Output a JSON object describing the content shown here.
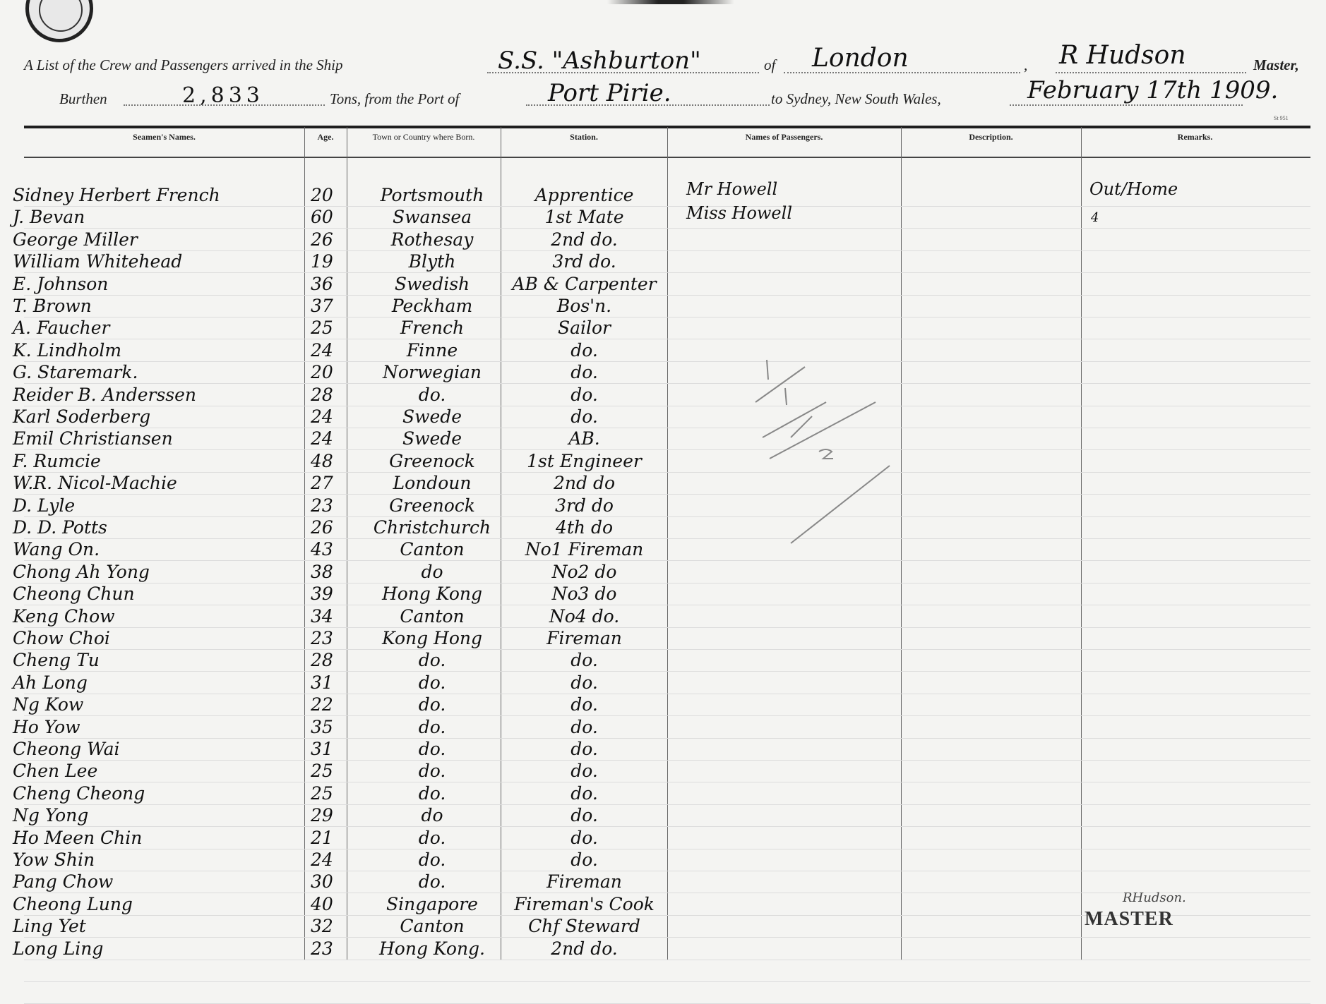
{
  "header": {
    "line1_prefix": "A List of the Crew and Passengers arrived in the Ship",
    "ship": "S.S. \"Ashburton\"",
    "of_label": "of",
    "port_of_registry": "London",
    "comma": ",",
    "master_name": "R Hudson",
    "master_label": "Master,",
    "burthen_label": "Burthen",
    "burthen": "2,833",
    "tons_label": "Tons, from the Port of",
    "from_port": "Port Pirie.",
    "to_label": "to Sydney, New South Wales,",
    "date": "February 17th 1909.",
    "form_number": "St 951"
  },
  "columns": [
    "Seamen's Names.",
    "Age.",
    "Town or Country where Born.",
    "Station.",
    "Names of Passengers.",
    "Description.",
    "Remarks."
  ],
  "crew": [
    {
      "name": "Sidney Herbert French",
      "age": "20",
      "born": "Portsmouth",
      "station": "Apprentice"
    },
    {
      "name": "J. Bevan",
      "age": "60",
      "born": "Swansea",
      "station": "1st Mate"
    },
    {
      "name": "George Miller",
      "age": "26",
      "born": "Rothesay",
      "station": "2nd do."
    },
    {
      "name": "William Whitehead",
      "age": "19",
      "born": "Blyth",
      "station": "3rd do."
    },
    {
      "name": "E. Johnson",
      "age": "36",
      "born": "Swedish",
      "station": "AB & Carpenter"
    },
    {
      "name": "T. Brown",
      "age": "37",
      "born": "Peckham",
      "station": "Bos'n."
    },
    {
      "name": "A. Faucher",
      "age": "25",
      "born": "French",
      "station": "Sailor"
    },
    {
      "name": "K. Lindholm",
      "age": "24",
      "born": "Finne",
      "station": "do."
    },
    {
      "name": "G. Staremark.",
      "age": "20",
      "born": "Norwegian",
      "station": "do."
    },
    {
      "name": "Reider B. Anderssen",
      "age": "28",
      "born": "do.",
      "station": "do."
    },
    {
      "name": "Karl Soderberg",
      "age": "24",
      "born": "Swede",
      "station": "do."
    },
    {
      "name": "Emil Christiansen",
      "age": "24",
      "born": "Swede",
      "station": "AB."
    },
    {
      "name": "F. Rumcie",
      "age": "48",
      "born": "Greenock",
      "station": "1st Engineer"
    },
    {
      "name": "W.R. Nicol-Machie",
      "age": "27",
      "born": "Londoun",
      "station": "2nd do"
    },
    {
      "name": "D. Lyle",
      "age": "23",
      "born": "Greenock",
      "station": "3rd do"
    },
    {
      "name": "D. D. Potts",
      "age": "26",
      "born": "Christchurch",
      "station": "4th do"
    },
    {
      "name": "Wang On.",
      "age": "43",
      "born": "Canton",
      "station": "No1 Fireman"
    },
    {
      "name": "Chong Ah Yong",
      "age": "38",
      "born": "do",
      "station": "No2 do"
    },
    {
      "name": "Cheong Chun",
      "age": "39",
      "born": "Hong Kong",
      "station": "No3 do"
    },
    {
      "name": "Keng Chow",
      "age": "34",
      "born": "Canton",
      "station": "No4 do."
    },
    {
      "name": "Chow Choi",
      "age": "23",
      "born": "Kong Hong",
      "station": "Fireman"
    },
    {
      "name": "Cheng Tu",
      "age": "28",
      "born": "do.",
      "station": "do."
    },
    {
      "name": "Ah Long",
      "age": "31",
      "born": "do.",
      "station": "do."
    },
    {
      "name": "Ng Kow",
      "age": "22",
      "born": "do.",
      "station": "do."
    },
    {
      "name": "Ho Yow",
      "age": "35",
      "born": "do.",
      "station": "do."
    },
    {
      "name": "Cheong Wai",
      "age": "31",
      "born": "do.",
      "station": "do."
    },
    {
      "name": "Chen Lee",
      "age": "25",
      "born": "do.",
      "station": "do."
    },
    {
      "name": "Cheng Cheong",
      "age": "25",
      "born": "do.",
      "station": "do."
    },
    {
      "name": "Ng Yong",
      "age": "29",
      "born": "do",
      "station": "do."
    },
    {
      "name": "Ho Meen Chin",
      "age": "21",
      "born": "do.",
      "station": "do."
    },
    {
      "name": "Yow Shin",
      "age": "24",
      "born": "do.",
      "station": "do."
    },
    {
      "name": "Pang Chow",
      "age": "30",
      "born": "do.",
      "station": "Fireman"
    },
    {
      "name": "Cheong Lung",
      "age": "40",
      "born": "Singapore",
      "station": "Fireman's Cook"
    },
    {
      "name": "Ling Yet",
      "age": "32",
      "born": "Canton",
      "station": "Chf Steward"
    },
    {
      "name": "Long Ling",
      "age": "23",
      "born": "Hong Kong.",
      "station": "2nd do."
    }
  ],
  "passengers": [
    {
      "name": "Mr Howell",
      "remarks": "Out/Home"
    },
    {
      "name": "Miss Howell",
      "remarks": "4"
    }
  ],
  "signature": {
    "name": "RHudson.",
    "stamp": "MASTER"
  },
  "colors": {
    "paper": "#f4f4f2",
    "ink": "#111111",
    "rule": "#dcdcdc"
  }
}
